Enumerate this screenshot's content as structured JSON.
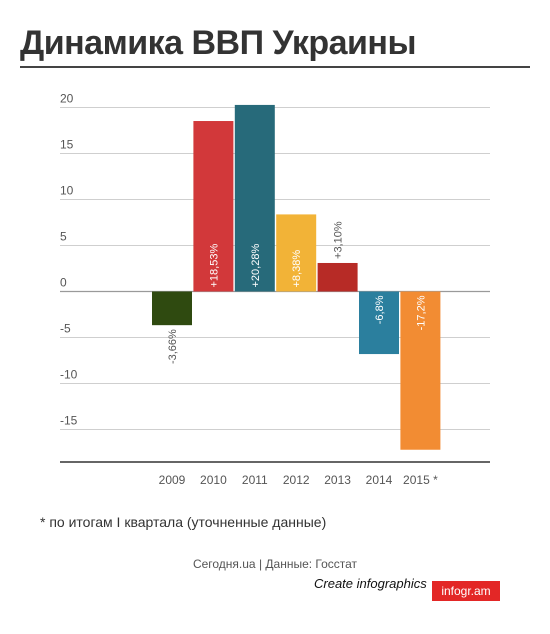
{
  "page": {
    "title": "Динамика ВВП Украины",
    "footnote": "* по итогам I квартала (уточненные данные)",
    "source": "Сегодня.ua | Данные: Госстат",
    "create_link": "Create infographics",
    "brand": "infogr.am"
  },
  "chart_data": {
    "type": "bar",
    "title": "Динамика ВВП Украины",
    "xlabel": "",
    "ylabel": "",
    "categories": [
      "2009",
      "2010",
      "2011",
      "2012",
      "2013",
      "2014",
      "2015 *"
    ],
    "values": [
      -3.66,
      18.53,
      20.28,
      8.38,
      3.1,
      -6.8,
      -17.2
    ],
    "data_labels": [
      "-3,66%",
      "+18,53%",
      "+20,28%",
      "+8,38%",
      "+3,10%",
      "-6,8%",
      "-17,2%"
    ],
    "colors": [
      "#2f4a10",
      "#d2383a",
      "#276a7a",
      "#f2b337",
      "#b72b26",
      "#2b7f9e",
      "#f28c33"
    ],
    "y_ticks": [
      "20",
      "15",
      "10",
      "5",
      "0",
      "-5",
      "-10",
      "-15"
    ],
    "ylim": [
      -19,
      21
    ],
    "grid": true,
    "legend": "none"
  }
}
